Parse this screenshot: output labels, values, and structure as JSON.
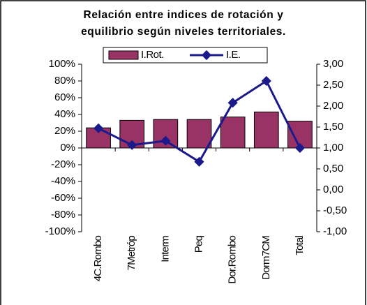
{
  "chart_data": {
    "type": "bar-line",
    "title": [
      "Relación entre indices de rotación y",
      "equilibrio según niveles territoriales."
    ],
    "categories": [
      "4C.Rombo",
      "7Metróp",
      "Interm",
      "Peq",
      "Dor.Rombo",
      "Dorm7CM",
      "Total"
    ],
    "series": [
      {
        "name": "I.Rot.",
        "color": "#993366",
        "type": "bar",
        "values": [
          24,
          33,
          34,
          34,
          37,
          43,
          32
        ]
      },
      {
        "name": "I.E.",
        "color": "#1a1a8c",
        "type": "line",
        "axis": "y2",
        "values": [
          1.47,
          1.07,
          1.17,
          0.67,
          2.08,
          2.6,
          1.0
        ]
      }
    ],
    "ylim": [
      -100,
      100
    ],
    "yticks": [
      {
        "value": 100,
        "label": "100%"
      },
      {
        "value": 80,
        "label": "80%"
      },
      {
        "value": 60,
        "label": "60%"
      },
      {
        "value": 40,
        "label": "40%"
      },
      {
        "value": 20,
        "label": "20%"
      },
      {
        "value": 0,
        "label": "0%"
      },
      {
        "value": -20,
        "label": "-20%"
      },
      {
        "value": -40,
        "label": "-40%"
      },
      {
        "value": -60,
        "label": "-60%"
      },
      {
        "value": -80,
        "label": "-80%"
      },
      {
        "value": -100,
        "label": "-100%"
      }
    ],
    "y2lim": [
      -1,
      3
    ],
    "y2ticks": [
      {
        "value": 3,
        "label": "3,00"
      },
      {
        "value": 2.5,
        "label": "2,50"
      },
      {
        "value": 2,
        "label": "2,00"
      },
      {
        "value": 1.5,
        "label": "1,50"
      },
      {
        "value": 1,
        "label": "1,00"
      },
      {
        "value": 0.5,
        "label": "0,50"
      },
      {
        "value": 0,
        "label": "0,00"
      },
      {
        "value": -0.5,
        "label": "-0,50"
      },
      {
        "value": -1,
        "label": "-1,00"
      }
    ],
    "legend": "top"
  }
}
